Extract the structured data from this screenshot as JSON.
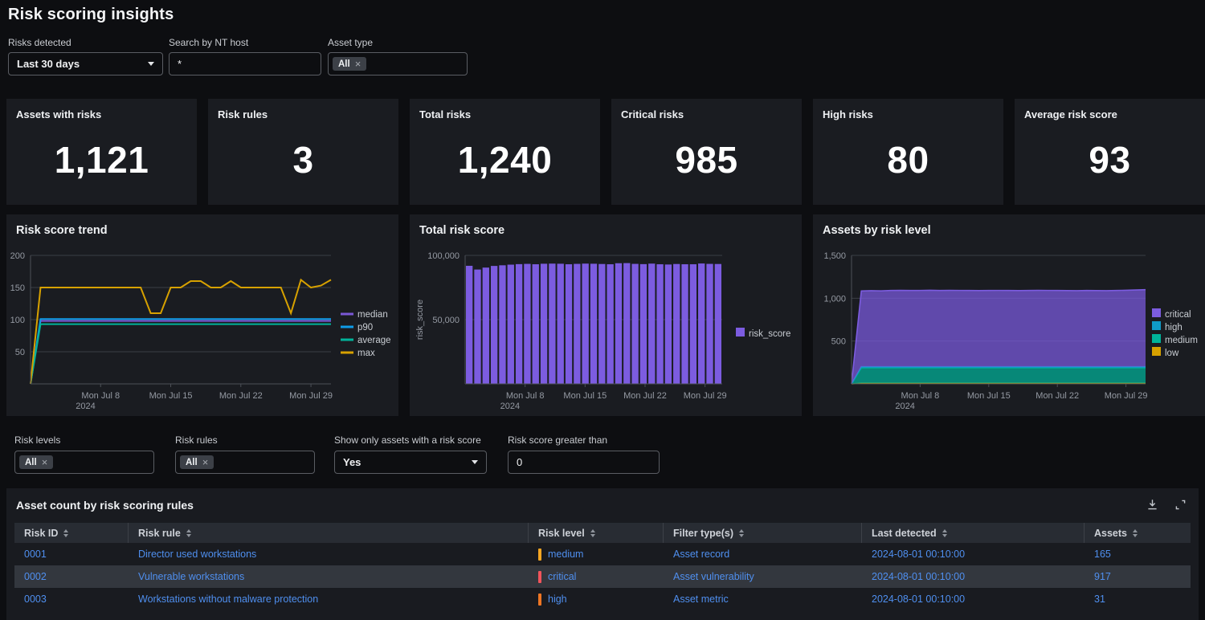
{
  "title": "Risk scoring insights",
  "filters_top": {
    "risks_detected": {
      "label": "Risks detected",
      "value": "Last 30 days"
    },
    "nt_host": {
      "label": "Search by NT host",
      "value": "*"
    },
    "asset_type": {
      "label": "Asset type",
      "chip": "All",
      "chip_remove": "×"
    }
  },
  "kpis": [
    {
      "label": "Assets with risks",
      "value": "1,121"
    },
    {
      "label": "Risk rules",
      "value": "3"
    },
    {
      "label": "Total risks",
      "value": "1,240"
    },
    {
      "label": "Critical risks",
      "value": "985"
    },
    {
      "label": "High risks",
      "value": "80"
    },
    {
      "label": "Average risk score",
      "value": "93"
    }
  ],
  "chart_data": [
    {
      "type": "line",
      "title": "Risk score trend",
      "x_count": 31,
      "x_range": [
        "2024-07-01",
        "2024-07-31"
      ],
      "ylim": [
        0,
        200
      ],
      "yticks": [
        50,
        100,
        150,
        200
      ],
      "xticks": [
        {
          "i": 7,
          "label": "Mon Jul 8",
          "sub": "2024"
        },
        {
          "i": 14,
          "label": "Mon Jul 15"
        },
        {
          "i": 21,
          "label": "Mon Jul 22"
        },
        {
          "i": 28,
          "label": "Mon Jul 29"
        }
      ],
      "legend_position": "right",
      "series": [
        {
          "name": "median",
          "color": "#7a58d6",
          "values": [
            0,
            98,
            98,
            98,
            98,
            98,
            98,
            98,
            98,
            98,
            98,
            98,
            98,
            98,
            98,
            98,
            98,
            98,
            98,
            98,
            98,
            98,
            98,
            98,
            98,
            98,
            98,
            98,
            98,
            98,
            98
          ]
        },
        {
          "name": "p90",
          "color": "#0f9be8",
          "values": [
            0,
            101,
            101,
            101,
            101,
            101,
            101,
            101,
            101,
            101,
            101,
            101,
            101,
            101,
            101,
            101,
            101,
            101,
            101,
            101,
            101,
            101,
            101,
            101,
            101,
            101,
            101,
            101,
            101,
            101,
            101
          ]
        },
        {
          "name": "average",
          "color": "#00b39a",
          "values": [
            0,
            93,
            93,
            93,
            93,
            93,
            93,
            93,
            93,
            93,
            93,
            93,
            93,
            93,
            93,
            93,
            93,
            93,
            93,
            93,
            93,
            93,
            93,
            93,
            93,
            93,
            93,
            93,
            93,
            93,
            93
          ]
        },
        {
          "name": "max",
          "color": "#d7a100",
          "values": [
            0,
            150,
            150,
            150,
            150,
            150,
            150,
            150,
            150,
            150,
            150,
            150,
            110,
            110,
            150,
            150,
            160,
            160,
            150,
            150,
            160,
            150,
            150,
            150,
            150,
            150,
            110,
            162,
            150,
            153,
            162
          ]
        }
      ]
    },
    {
      "type": "bar",
      "title": "Total risk score",
      "ylabel": "risk_score",
      "x_count": 31,
      "x_range": [
        "2024-07-01",
        "2024-07-31"
      ],
      "ylim": [
        0,
        100000
      ],
      "yticks": [
        50000,
        100000
      ],
      "xticks": [
        {
          "i": 7,
          "label": "Mon Jul 8",
          "sub": "2024"
        },
        {
          "i": 14,
          "label": "Mon Jul 15"
        },
        {
          "i": 21,
          "label": "Mon Jul 22"
        },
        {
          "i": 28,
          "label": "Mon Jul 29"
        }
      ],
      "legend_position": "right",
      "series": [
        {
          "name": "risk_score",
          "color": "#7c5ce0",
          "values": [
            91900,
            89000,
            90500,
            91800,
            92300,
            92800,
            93200,
            93400,
            93100,
            93500,
            93600,
            93500,
            93100,
            93400,
            93600,
            93500,
            93300,
            93100,
            93900,
            94000,
            93400,
            93200,
            93600,
            93100,
            92900,
            93300,
            93100,
            93100,
            93700,
            93400,
            93300
          ]
        }
      ]
    },
    {
      "type": "area",
      "title": "Assets by risk level",
      "x_count": 31,
      "x_range": [
        "2024-07-01",
        "2024-07-31"
      ],
      "ylim": [
        0,
        1500
      ],
      "yticks": [
        500,
        1000,
        1500
      ],
      "xticks": [
        {
          "i": 7,
          "label": "Mon Jul 8",
          "sub": "2024"
        },
        {
          "i": 14,
          "label": "Mon Jul 15"
        },
        {
          "i": 21,
          "label": "Mon Jul 22"
        },
        {
          "i": 28,
          "label": "Mon Jul 29"
        }
      ],
      "legend_position": "right",
      "legend_order": [
        "critical",
        "high",
        "medium",
        "low"
      ],
      "series": [
        {
          "name": "low",
          "color": "#d7a100",
          "values": [
            0,
            8,
            8,
            8,
            8,
            8,
            8,
            8,
            8,
            8,
            8,
            8,
            8,
            8,
            8,
            8,
            8,
            8,
            8,
            8,
            8,
            8,
            8,
            8,
            8,
            8,
            8,
            8,
            8,
            8,
            8
          ]
        },
        {
          "name": "medium",
          "color": "#00b39a",
          "values": [
            0,
            180,
            180,
            180,
            180,
            180,
            180,
            180,
            180,
            180,
            180,
            180,
            180,
            180,
            180,
            180,
            180,
            180,
            180,
            180,
            180,
            180,
            180,
            180,
            180,
            180,
            180,
            180,
            180,
            180,
            180
          ]
        },
        {
          "name": "high",
          "color": "#0f9bc8",
          "values": [
            0,
            12,
            12,
            12,
            12,
            12,
            12,
            12,
            12,
            12,
            12,
            12,
            12,
            12,
            12,
            12,
            12,
            12,
            12,
            12,
            12,
            12,
            12,
            12,
            12,
            12,
            12,
            12,
            12,
            12,
            12
          ]
        },
        {
          "name": "critical",
          "color": "#7c5ce0",
          "values": [
            0,
            885,
            888,
            886,
            890,
            892,
            890,
            891,
            893,
            890,
            892,
            891,
            890,
            889,
            890,
            891,
            890,
            889,
            890,
            892,
            891,
            890,
            889,
            888,
            890,
            889,
            888,
            890,
            893,
            896,
            900
          ]
        }
      ]
    }
  ],
  "filters_mid": {
    "risk_levels": {
      "label": "Risk levels",
      "chip": "All",
      "chip_remove": "×"
    },
    "risk_rules": {
      "label": "Risk rules",
      "chip": "All",
      "chip_remove": "×"
    },
    "assets_with_score": {
      "label": "Show only assets with a risk score",
      "value": "Yes"
    },
    "score_greater": {
      "label": "Risk score greater than",
      "value": "0"
    }
  },
  "table": {
    "title": "Asset count by risk scoring rules",
    "columns": [
      "Risk ID",
      "Risk rule",
      "Risk level",
      "Filter type(s)",
      "Last detected",
      "Assets"
    ],
    "rows": [
      {
        "risk_id": "0001",
        "risk_rule": "Director used workstations",
        "risk_level": "medium",
        "level_color": "#f5a623",
        "filter_type": "Asset record",
        "last_detected": "2024-08-01 00:10:00",
        "assets": "165"
      },
      {
        "risk_id": "0002",
        "risk_rule": "Vulnerable workstations",
        "risk_level": "critical",
        "level_color": "#f2545b",
        "filter_type": "Asset vulnerability",
        "last_detected": "2024-08-01 00:10:00",
        "assets": "917"
      },
      {
        "risk_id": "0003",
        "risk_rule": "Workstations without malware protection",
        "risk_level": "high",
        "level_color": "#ee7624",
        "filter_type": "Asset metric",
        "last_detected": "2024-08-01 00:10:00",
        "assets": "31"
      }
    ]
  },
  "colors": {
    "page_bg": "#0d0e11",
    "panel_bg": "#1a1c21",
    "link": "#4f8fef",
    "grid": "#3a3e45",
    "axis": "#4c5057",
    "axis_text": "#959aa3",
    "purple": "#7c5ce0",
    "blue": "#0f9be8",
    "teal": "#00b39a",
    "gold": "#d7a100"
  }
}
